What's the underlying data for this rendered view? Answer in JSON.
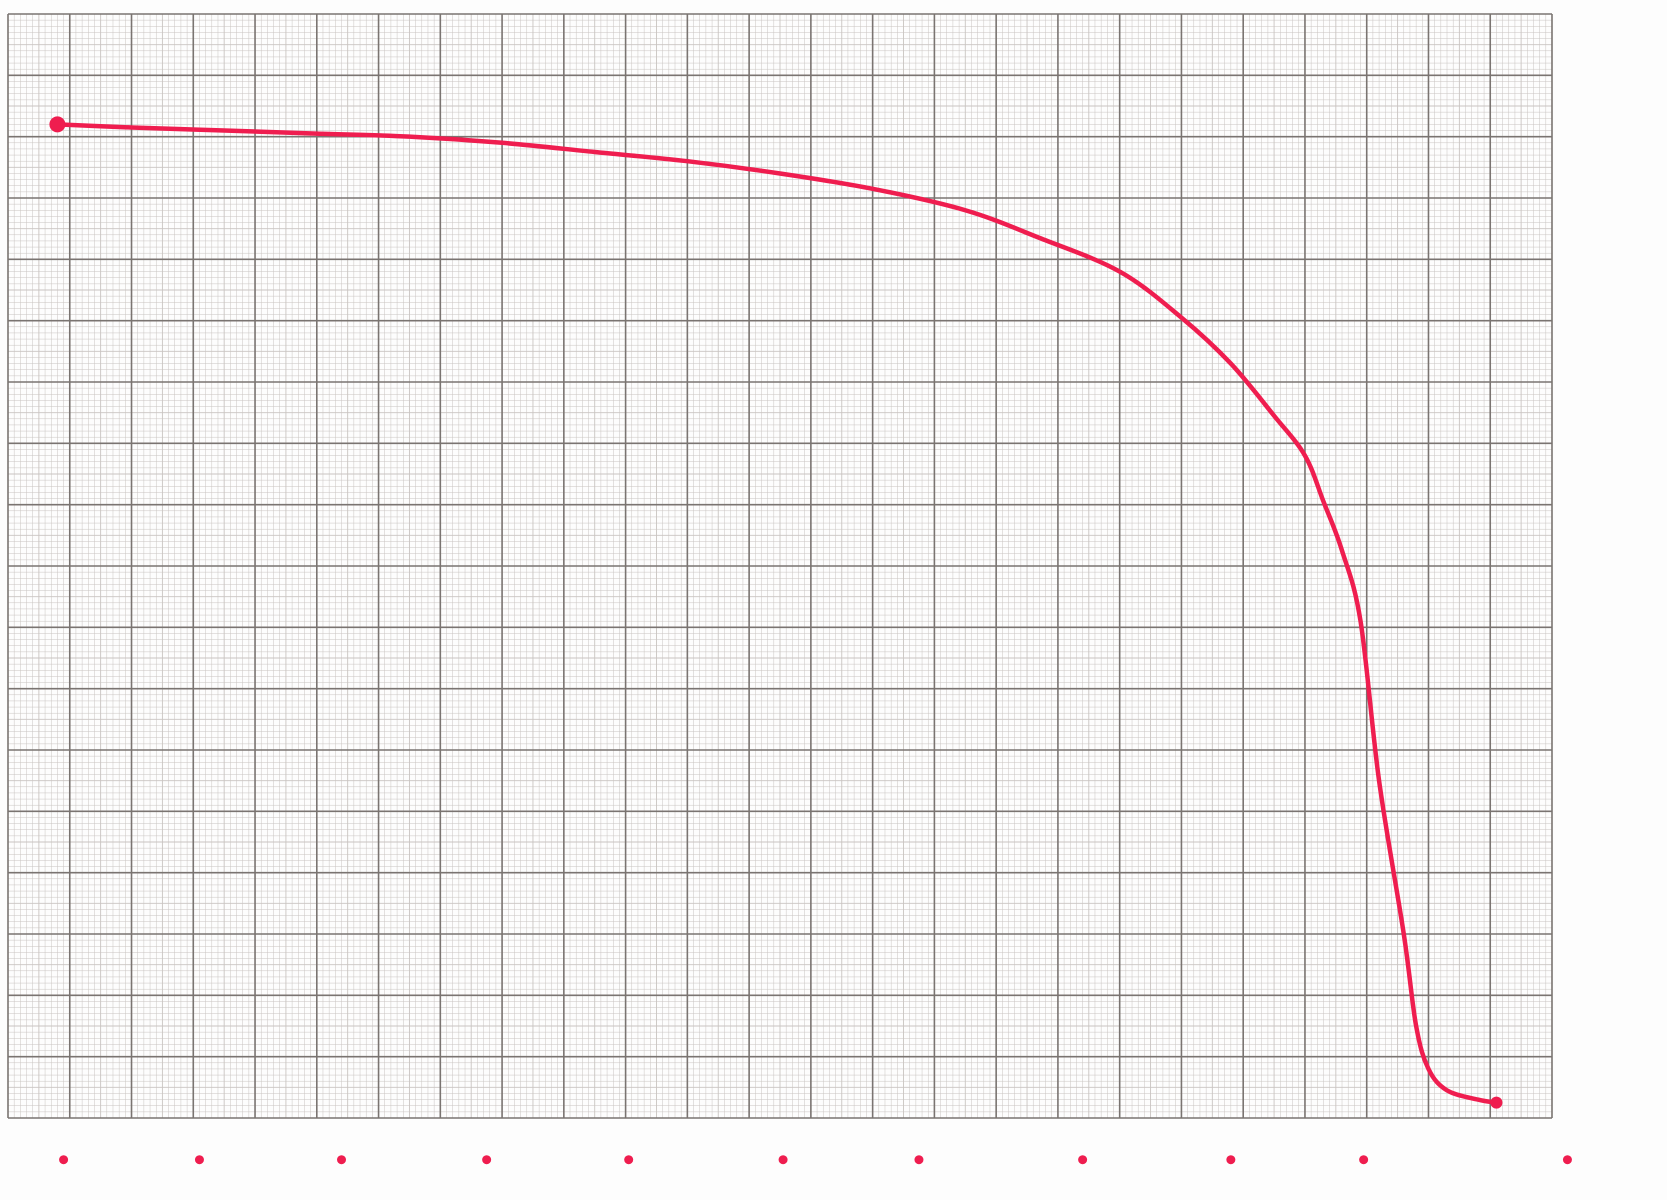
{
  "colors": {
    "paper": "#fdfdfd",
    "grid_major": "#7a7471",
    "grid_minor": "#c9c4c1",
    "curve": "#ef1d4f"
  },
  "chart_data": {
    "type": "line",
    "title": "",
    "xlabel": "",
    "ylabel": "",
    "grid": true,
    "legend": "none",
    "xlim": [
      0,
      25
    ],
    "ylim": [
      0,
      18
    ],
    "series": [
      {
        "values_x": [
          0.8,
          2.0,
          3.5,
          5.0,
          6.5,
          8.0,
          9.5,
          11.0,
          12.5,
          14.0,
          15.5,
          16.7,
          18.0,
          19.0,
          19.8,
          20.5,
          21.0,
          21.3,
          21.6,
          21.9,
          22.2,
          22.6,
          22.8,
          23.0,
          23.3,
          23.8,
          24.1
        ],
        "values_y": [
          16.2,
          16.15,
          16.1,
          16.05,
          16.0,
          15.9,
          15.75,
          15.6,
          15.4,
          15.15,
          14.8,
          14.35,
          13.8,
          13.05,
          12.3,
          11.45,
          10.8,
          10.05,
          9.25,
          8.1,
          5.5,
          3.0,
          1.5,
          0.8,
          0.45,
          0.3,
          0.25
        ]
      }
    ],
    "markers": {
      "x": [
        0.9,
        3.1,
        5.4,
        7.75,
        10.05,
        12.55,
        14.75,
        17.4,
        19.8,
        21.95,
        25.25
      ],
      "y": -0.68
    }
  }
}
